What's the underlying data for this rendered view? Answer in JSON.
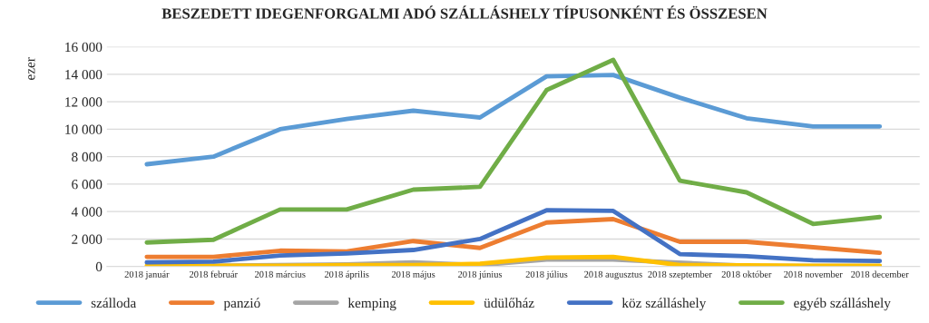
{
  "chart_data": {
    "type": "line",
    "title": "BESZEDETT IDEGENFORGALMI ADÓ SZÁLLÁSHELY TÍPUSONKÉNT ÉS ÖSSZESEN",
    "ylabel": "ezer",
    "categories": [
      "2018 január",
      "2018 február",
      "2018 március",
      "2018 április",
      "2018 május",
      "2018 június",
      "2018 július",
      "2018 augusztus",
      "2018 szeptember",
      "2018 október",
      "2018 november",
      "2018 december"
    ],
    "series": [
      {
        "name": "szálloda",
        "color": "#5b9bd5",
        "values": [
          7450,
          8000,
          10000,
          10750,
          11350,
          10850,
          13850,
          13950,
          12300,
          10800,
          10200,
          10200
        ]
      },
      {
        "name": "panzió",
        "color": "#ed7d31",
        "values": [
          700,
          700,
          1150,
          1100,
          1850,
          1350,
          3200,
          3450,
          1800,
          1800,
          1400,
          1000
        ]
      },
      {
        "name": "kemping",
        "color": "#a5a5a5",
        "values": [
          null,
          50,
          null,
          150,
          300,
          100,
          500,
          500,
          null,
          50,
          null,
          30
        ]
      },
      {
        "name": "üdülőház",
        "color": "#ffc000",
        "values": [
          50,
          50,
          50,
          100,
          100,
          200,
          650,
          700,
          100,
          80,
          50,
          50
        ]
      },
      {
        "name": "köz szálláshely",
        "color": "#4472c4",
        "values": [
          300,
          350,
          800,
          950,
          1200,
          2000,
          4100,
          4050,
          900,
          750,
          450,
          400
        ]
      },
      {
        "name": "egyéb szálláshely",
        "color": "#70ad47",
        "values": [
          1750,
          1950,
          4150,
          4150,
          5600,
          5800,
          12850,
          15050,
          6250,
          5400,
          3100,
          3600
        ]
      }
    ],
    "ylim": [
      0,
      16000
    ],
    "yticks": [
      {
        "value": 0,
        "label": "0"
      },
      {
        "value": 2000,
        "label": "2 000"
      },
      {
        "value": 4000,
        "label": "4 000"
      },
      {
        "value": 6000,
        "label": "6 000"
      },
      {
        "value": 8000,
        "label": "8 000"
      },
      {
        "value": 10000,
        "label": "10 000"
      },
      {
        "value": 12000,
        "label": "12 000"
      },
      {
        "value": 14000,
        "label": "14 000"
      },
      {
        "value": 16000,
        "label": "16 000"
      }
    ],
    "grid": "y",
    "legend": "bottom",
    "marker": "none",
    "line_style": "solid"
  }
}
